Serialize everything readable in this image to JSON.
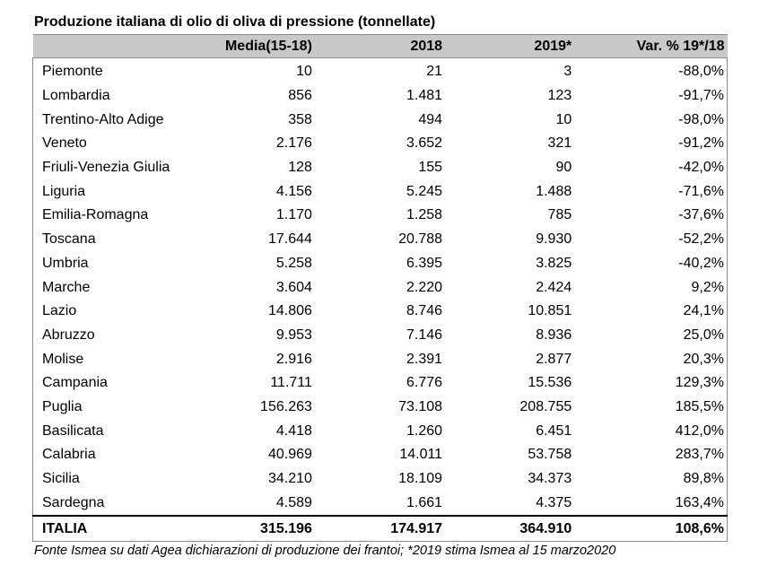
{
  "title": "Produzione italiana di olio di oliva di pressione (tonnellate)",
  "headers": [
    "",
    "Media(15-18)",
    "2018",
    "2019*",
    "Var. % 19*/18"
  ],
  "rows": [
    [
      "Piemonte",
      "10",
      "21",
      "3",
      "-88,0%"
    ],
    [
      "Lombardia",
      "856",
      "1.481",
      "123",
      "-91,7%"
    ],
    [
      "Trentino-Alto Adige",
      "358",
      "494",
      "10",
      "-98,0%"
    ],
    [
      "Veneto",
      "2.176",
      "3.652",
      "321",
      "-91,2%"
    ],
    [
      "Friuli-Venezia Giulia",
      "128",
      "155",
      "90",
      "-42,0%"
    ],
    [
      "Liguria",
      "4.156",
      "5.245",
      "1.488",
      "-71,6%"
    ],
    [
      "Emilia-Romagna",
      "1.170",
      "1.258",
      "785",
      "-37,6%"
    ],
    [
      "Toscana",
      "17.644",
      "20.788",
      "9.930",
      "-52,2%"
    ],
    [
      "Umbria",
      "5.258",
      "6.395",
      "3.825",
      "-40,2%"
    ],
    [
      "Marche",
      "3.604",
      "2.220",
      "2.424",
      "9,2%"
    ],
    [
      "Lazio",
      "14.806",
      "8.746",
      "10.851",
      "24,1%"
    ],
    [
      "Abruzzo",
      "9.953",
      "7.146",
      "8.936",
      "25,0%"
    ],
    [
      "Molise",
      "2.916",
      "2.391",
      "2.877",
      "20,3%"
    ],
    [
      "Campania",
      "11.711",
      "6.776",
      "15.536",
      "129,3%"
    ],
    [
      "Puglia",
      "156.263",
      "73.108",
      "208.755",
      "185,5%"
    ],
    [
      "Basilicata",
      "4.418",
      "1.260",
      "6.451",
      "412,0%"
    ],
    [
      "Calabria",
      "40.969",
      "14.011",
      "53.758",
      "283,7%"
    ],
    [
      "Sicilia",
      "34.210",
      "18.109",
      "34.373",
      "89,8%"
    ],
    [
      "Sardegna",
      "4.589",
      "1.661",
      "4.375",
      "163,4%"
    ]
  ],
  "total": [
    "ITALIA",
    "315.196",
    "174.917",
    "364.910",
    "108,6%"
  ],
  "source": "Fonte Ismea su dati Agea dichiarazioni di produzione dei frantoi; *2019 stima Ismea al 15 marzo2020"
}
